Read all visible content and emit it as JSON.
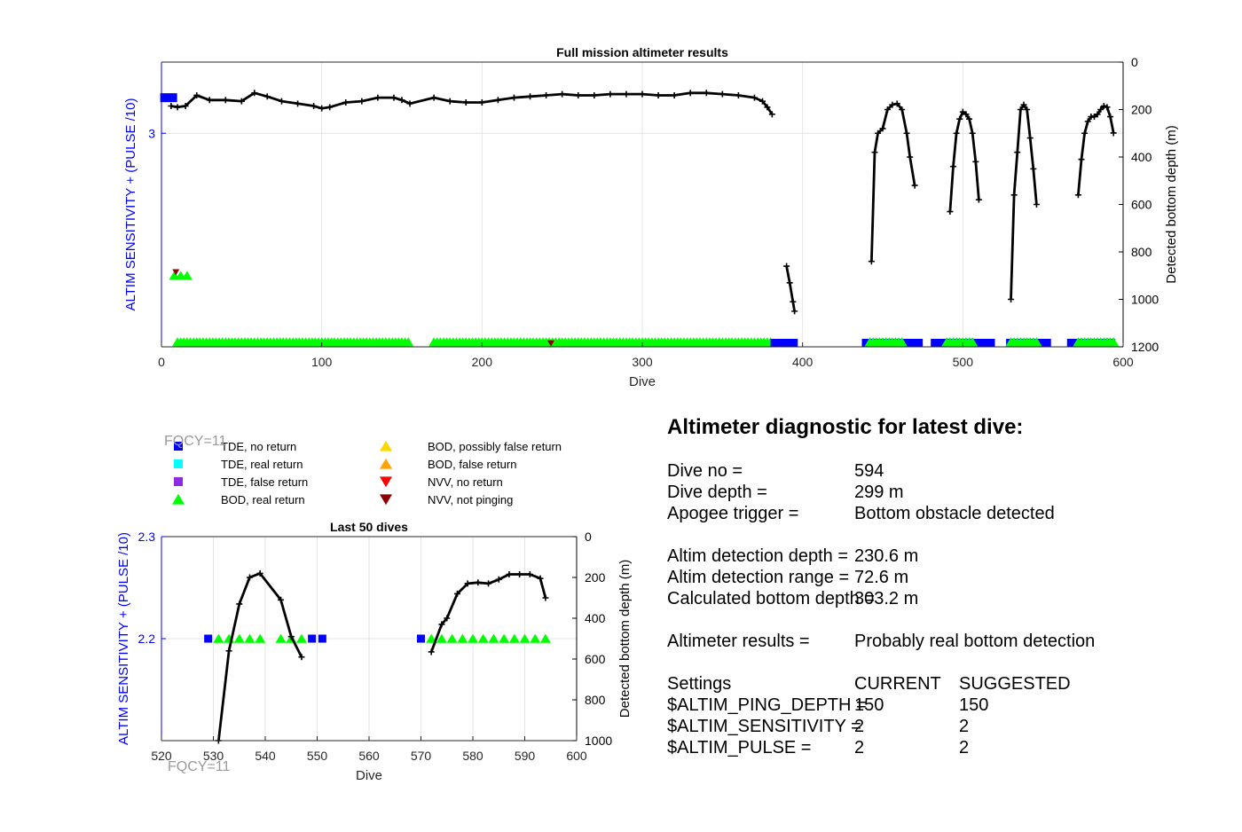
{
  "chart_data": [
    {
      "type": "scatter",
      "title": "Full mission altimeter results",
      "xlabel": "Dive",
      "ylabel_left": "ALTIM SENSITIVITY + (PULSE /10)",
      "ylabel_right": "Detected bottom depth (m)",
      "xlim": [
        0,
        600
      ],
      "ylim_left": [
        2.4,
        3.2
      ],
      "ylim_right": [
        0,
        1200
      ],
      "right_axis_reversed": true,
      "x_ticks": [
        0,
        100,
        200,
        300,
        400,
        500,
        600
      ],
      "y_left_ticks": [
        3
      ],
      "y_right_ticks": [
        0,
        200,
        400,
        600,
        800,
        1000,
        1200
      ],
      "grid": true,
      "bottom_depth_segments": [
        {
          "x": [
            6,
            10,
            15,
            22,
            30,
            40,
            50,
            58,
            66,
            75,
            85,
            95,
            100,
            105,
            115,
            125,
            135,
            145,
            150,
            155,
            170,
            180,
            190,
            200,
            210,
            220,
            230,
            240,
            250,
            260,
            270,
            280,
            290,
            300,
            310,
            320,
            330,
            340,
            350,
            360,
            370,
            375,
            378,
            381
          ],
          "y": [
            185,
            190,
            185,
            140,
            160,
            160,
            165,
            130,
            145,
            165,
            175,
            185,
            195,
            190,
            170,
            165,
            150,
            150,
            160,
            175,
            150,
            165,
            170,
            170,
            160,
            150,
            145,
            140,
            135,
            140,
            140,
            135,
            135,
            135,
            140,
            140,
            130,
            130,
            135,
            140,
            150,
            165,
            190,
            220
          ]
        },
        {
          "x": [
            390,
            392,
            394,
            395
          ],
          "y": [
            860,
            930,
            1010,
            1050
          ]
        },
        {
          "x": [
            443,
            445,
            447,
            450,
            453,
            456,
            459,
            462,
            465,
            467,
            470
          ],
          "y": [
            840,
            380,
            300,
            280,
            200,
            180,
            175,
            200,
            300,
            400,
            520
          ]
        },
        {
          "x": [
            492,
            494,
            496,
            498,
            500,
            502,
            504,
            506,
            508,
            510
          ],
          "y": [
            630,
            440,
            300,
            240,
            210,
            220,
            240,
            300,
            420,
            580
          ]
        },
        {
          "x": [
            530,
            532,
            534,
            536,
            538,
            540,
            542,
            544,
            546
          ],
          "y": [
            1000,
            560,
            380,
            200,
            180,
            200,
            320,
            450,
            600
          ]
        },
        {
          "x": [
            572,
            574,
            576,
            578,
            580,
            582,
            584,
            586,
            588,
            590,
            592,
            594
          ],
          "y": [
            560,
            410,
            300,
            250,
            230,
            230,
            220,
            200,
            185,
            190,
            230,
            299
          ]
        }
      ],
      "tde_no_return": {
        "markers": [
          {
            "x": 2,
            "y": 3.1
          },
          {
            "x": 7,
            "y": 3.1
          }
        ],
        "bands": [
          [
            380,
            397
          ],
          [
            437,
            475
          ],
          [
            480,
            520
          ],
          [
            527,
            555
          ],
          [
            565,
            595
          ]
        ]
      },
      "bod_real_return_bands": [
        [
          10,
          155
        ],
        [
          170,
          380
        ],
        [
          442,
          463
        ],
        [
          490,
          507
        ],
        [
          530,
          547
        ],
        [
          572,
          595
        ]
      ],
      "bod_real_return_initial": [
        8,
        12,
        16
      ],
      "nvv_not_pinging": [
        {
          "x": 9,
          "y": 2.6
        },
        {
          "x": 243,
          "y": 2.4
        }
      ],
      "fqcy_label": "FQCY=11"
    },
    {
      "type": "scatter",
      "title": "Last 50 dives",
      "xlabel": "Dive",
      "ylabel_left": "ALTIM SENSITIVITY + (PULSE /10)",
      "ylabel_right": "Detected bottom depth (m)",
      "xlim": [
        520,
        600
      ],
      "ylim_left": [
        2.1,
        2.3
      ],
      "ylim_right": [
        0,
        1000
      ],
      "right_axis_reversed": true,
      "x_ticks": [
        520,
        530,
        540,
        550,
        560,
        570,
        580,
        590,
        600
      ],
      "y_left_ticks": [
        2.2,
        2.3
      ],
      "y_right_ticks": [
        0,
        200,
        400,
        600,
        800,
        1000
      ],
      "grid": true,
      "bottom_depth_segments": [
        {
          "x": [
            531,
            533,
            535,
            537,
            539,
            543,
            545,
            547
          ],
          "y": [
            1000,
            560,
            330,
            200,
            180,
            310,
            490,
            590
          ]
        },
        {
          "x": [
            572,
            574,
            575,
            577,
            579,
            581,
            583,
            585,
            587,
            589,
            591,
            593,
            594
          ],
          "y": [
            565,
            430,
            400,
            280,
            230,
            225,
            230,
            210,
            185,
            185,
            185,
            205,
            300
          ]
        }
      ],
      "tde_no_return_x": [
        529,
        549,
        551,
        570
      ],
      "bod_real_return_x": [
        531,
        533,
        535,
        537,
        539,
        543,
        545,
        547,
        572,
        574,
        576,
        578,
        580,
        582,
        584,
        586,
        588,
        590,
        592,
        594
      ],
      "marker_y": 2.2,
      "fqcy_label": "FQCY=11"
    }
  ],
  "legend": {
    "items": [
      {
        "label": "TDE, no return",
        "color": "#0000ff",
        "marker": "square"
      },
      {
        "label": "TDE, real return",
        "color": "#00ffff",
        "marker": "square"
      },
      {
        "label": "TDE, false return",
        "color": "#8a2be2",
        "marker": "square"
      },
      {
        "label": "BOD, real return",
        "color": "#00ff00",
        "marker": "triangle-up"
      },
      {
        "label": "BOD, possibly false return",
        "color": "#ffd700",
        "marker": "triangle-up"
      },
      {
        "label": "BOD, false return",
        "color": "#ffa500",
        "marker": "triangle-up"
      },
      {
        "label": "NVV, no return",
        "color": "#ff0000",
        "marker": "triangle-down"
      },
      {
        "label": "NVV, not pinging",
        "color": "#8b0000",
        "marker": "triangle-down"
      }
    ],
    "fqcy_label": "FQCY=11"
  },
  "diagnostic": {
    "title": "Altimeter diagnostic for latest dive:",
    "dive_no_label": "Dive no =",
    "dive_no": "594",
    "dive_depth_label": "Dive depth =",
    "dive_depth": "299 m",
    "apogee_label": "Apogee trigger =",
    "apogee": "Bottom obstacle detected",
    "det_depth_label": "Altim detection depth =",
    "det_depth": "230.6 m",
    "det_range_label": "Altim detection range =",
    "det_range": "72.6 m",
    "calc_depth_label": "Calculated bottom depth =",
    "calc_depth": "303.2 m",
    "results_label": "Altimeter results =",
    "results": "Probably real bottom detection",
    "settings_label": "Settings",
    "current_label": "CURRENT",
    "suggested_label": "SUGGESTED",
    "ping_depth_label": "$ALTIM_PING_DEPTH =",
    "ping_depth_current": "150",
    "ping_depth_suggested": "150",
    "sensitivity_label": "$ALTIM_SENSITIVITY =",
    "sensitivity_current": "2",
    "sensitivity_suggested": "2",
    "pulse_label": "$ALTIM_PULSE =",
    "pulse_current": "2",
    "pulse_suggested": "2"
  },
  "colors": {
    "axis_left": "#0000ff",
    "axis_right": "#000000",
    "grid": "#e6e6e6",
    "depth_line": "#000000",
    "fqcy": "#999999"
  }
}
